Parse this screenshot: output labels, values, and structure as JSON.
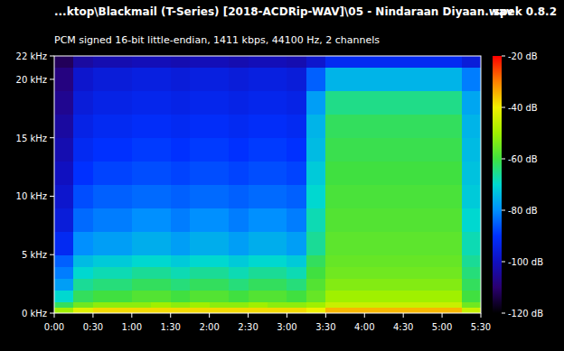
{
  "chart_data": {
    "type": "heatmap",
    "title": "...ktop\\Blackmail (T-Series) [2018-ACDRip-WAV]\\05 - Nindaraan Diyaan.wav",
    "subtitle": "PCM signed 16-bit little-endian, 1411 kbps, 44100 Hz, 2 channels",
    "annotations": [
      "spek 0.8.2"
    ],
    "xlim": [
      0,
      330
    ],
    "xticks": [
      {
        "value": 0,
        "label": "0:00"
      },
      {
        "value": 30,
        "label": "0:30"
      },
      {
        "value": 60,
        "label": "1:00"
      },
      {
        "value": 90,
        "label": "1:30"
      },
      {
        "value": 120,
        "label": "2:00"
      },
      {
        "value": 150,
        "label": "2:30"
      },
      {
        "value": 180,
        "label": "3:00"
      },
      {
        "value": 210,
        "label": "3:30"
      },
      {
        "value": 240,
        "label": "4:00"
      },
      {
        "value": 270,
        "label": "4:30"
      },
      {
        "value": 300,
        "label": "5:00"
      },
      {
        "value": 330,
        "label": "5:30"
      }
    ],
    "ylim": [
      0,
      22
    ],
    "yticks": [
      {
        "value": 0,
        "label": "0 kHz"
      },
      {
        "value": 5,
        "label": "5 kHz"
      },
      {
        "value": 10,
        "label": "10 kHz"
      },
      {
        "value": 15,
        "label": "15 kHz"
      },
      {
        "value": 20,
        "label": "20 kHz"
      },
      {
        "value": 22,
        "label": "22 kHz"
      }
    ],
    "x_edges": [
      0,
      15,
      30,
      45,
      60,
      75,
      90,
      105,
      120,
      135,
      150,
      165,
      180,
      195,
      210,
      225,
      240,
      255,
      270,
      285,
      300,
      315,
      330
    ],
    "y_edges": [
      0,
      0.5,
      1,
      2,
      3,
      4,
      5,
      7,
      9,
      11,
      13,
      15,
      17,
      19,
      21,
      22
    ],
    "cells": [
      [
        -50,
        -42,
        -38,
        -38,
        -38,
        -38,
        -38,
        -38,
        -38,
        -38,
        -38,
        -38,
        -38,
        -40,
        -35,
        -35,
        -35,
        -35,
        -35,
        -35,
        -35,
        -45
      ],
      [
        -62,
        -55,
        -52,
        -52,
        -52,
        -50,
        -52,
        -50,
        -52,
        -52,
        -50,
        -52,
        -52,
        -50,
        -45,
        -45,
        -45,
        -45,
        -45,
        -45,
        -45,
        -55
      ],
      [
        -70,
        -62,
        -60,
        -60,
        -58,
        -58,
        -60,
        -58,
        -58,
        -60,
        -58,
        -58,
        -60,
        -56,
        -50,
        -50,
        -50,
        -50,
        -50,
        -50,
        -50,
        -60
      ],
      [
        -78,
        -66,
        -64,
        -64,
        -62,
        -62,
        -64,
        -62,
        -62,
        -64,
        -62,
        -62,
        -64,
        -58,
        -53,
        -53,
        -53,
        -53,
        -53,
        -53,
        -53,
        -62
      ],
      [
        -82,
        -70,
        -68,
        -68,
        -66,
        -66,
        -68,
        -66,
        -66,
        -68,
        -66,
        -66,
        -68,
        -60,
        -55,
        -55,
        -55,
        -55,
        -55,
        -55,
        -55,
        -64
      ],
      [
        -85,
        -74,
        -72,
        -72,
        -70,
        -70,
        -72,
        -70,
        -70,
        -72,
        -70,
        -70,
        -72,
        -62,
        -56,
        -56,
        -56,
        -56,
        -56,
        -56,
        -56,
        -66
      ],
      [
        -92,
        -80,
        -78,
        -78,
        -76,
        -76,
        -78,
        -76,
        -76,
        -78,
        -76,
        -76,
        -78,
        -66,
        -57,
        -57,
        -57,
        -57,
        -57,
        -57,
        -57,
        -68
      ],
      [
        -96,
        -84,
        -82,
        -82,
        -80,
        -80,
        -82,
        -80,
        -80,
        -82,
        -80,
        -80,
        -82,
        -68,
        -58,
        -58,
        -58,
        -58,
        -58,
        -58,
        -58,
        -70
      ],
      [
        -98,
        -87,
        -85,
        -85,
        -84,
        -84,
        -85,
        -84,
        -84,
        -85,
        -84,
        -84,
        -85,
        -70,
        -59,
        -59,
        -59,
        -59,
        -59,
        -59,
        -59,
        -72
      ],
      [
        -100,
        -90,
        -88,
        -88,
        -87,
        -87,
        -88,
        -87,
        -87,
        -88,
        -87,
        -87,
        -88,
        -72,
        -60,
        -60,
        -60,
        -60,
        -60,
        -60,
        -60,
        -73
      ],
      [
        -102,
        -92,
        -90,
        -90,
        -89,
        -89,
        -90,
        -89,
        -89,
        -90,
        -89,
        -89,
        -90,
        -74,
        -61,
        -61,
        -61,
        -61,
        -61,
        -61,
        -61,
        -74
      ],
      [
        -104,
        -94,
        -92,
        -92,
        -91,
        -91,
        -92,
        -91,
        -91,
        -92,
        -91,
        -91,
        -92,
        -75,
        -62,
        -62,
        -62,
        -62,
        -62,
        -62,
        -62,
        -75
      ],
      [
        -106,
        -96,
        -94,
        -94,
        -93,
        -93,
        -94,
        -93,
        -93,
        -94,
        -93,
        -93,
        -94,
        -78,
        -65,
        -65,
        -65,
        -65,
        -65,
        -65,
        -65,
        -77
      ],
      [
        -108,
        -98,
        -96,
        -96,
        -95,
        -95,
        -96,
        -95,
        -95,
        -96,
        -95,
        -95,
        -96,
        -85,
        -75,
        -75,
        -75,
        -75,
        -75,
        -75,
        -75,
        -82
      ],
      [
        -112,
        -104,
        -102,
        -102,
        -101,
        -101,
        -102,
        -101,
        -101,
        -102,
        -101,
        -101,
        -102,
        -98,
        -92,
        -92,
        -92,
        -92,
        -92,
        -92,
        -92,
        -96
      ]
    ],
    "color_range": [
      -120,
      -20
    ],
    "color_ticks": [
      {
        "value": -20,
        "label": "-20 dB"
      },
      {
        "value": -40,
        "label": "-40 dB"
      },
      {
        "value": -60,
        "label": "-60 dB"
      },
      {
        "value": -80,
        "label": "-80 dB"
      },
      {
        "value": -100,
        "label": "-100 dB"
      },
      {
        "value": -120,
        "label": "-120 dB"
      }
    ],
    "colors": [
      "#000000",
      "#2a0070",
      "#1010c0",
      "#0030ff",
      "#0090ff",
      "#00d8d0",
      "#40e040",
      "#a0f000",
      "#f0f000",
      "#ff8000",
      "#ff0000"
    ]
  }
}
